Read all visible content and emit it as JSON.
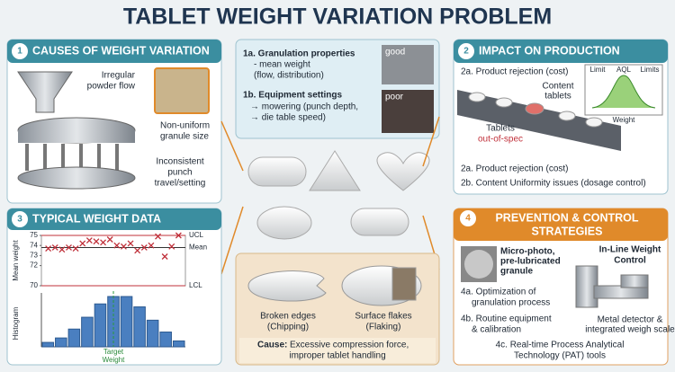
{
  "title": "TABLET WEIGHT VARIATION PROBLEM",
  "causes": {
    "number": "1",
    "title": "CAUSES OF WEIGHT VARIATION",
    "labels": [
      [
        "Irregular",
        "powder flow"
      ],
      [
        "Non-uniform",
        "granule size"
      ],
      [
        "Inconsistent",
        "punch",
        "travel/setting"
      ]
    ]
  },
  "properties": {
    "a_title": "1a. Granulation properties",
    "a_lines": [
      "- mean weight",
      "(flow, distribution)"
    ],
    "good": "good",
    "b_title": "1b. Equipment settings",
    "b_lines": [
      "→ mowering (punch depth,",
      "→ die table speed)"
    ],
    "poor": "poor"
  },
  "impact": {
    "number": "2",
    "title": "IMPACT ON PRODUCTION",
    "top_item": "2a. Product rejection (cost)",
    "content_label": [
      "Content",
      "tablets"
    ],
    "spec_label": [
      "Tablets",
      "out-of-spec"
    ],
    "curve_labels": [
      "Limit",
      "AQL",
      "Limits",
      "Weight"
    ],
    "items": [
      "2a. Product rejection (cost)",
      "2b. Content Uniformity issues (dosage control)"
    ]
  },
  "data_panel": {
    "number": "3",
    "title": "TYPICAL WEIGHT DATA"
  },
  "defects": {
    "chipping": [
      "Broken edges",
      "(Chipping)"
    ],
    "flaking": [
      "Surface flakes",
      "(Flaking)"
    ],
    "cause_label": "Cause:",
    "cause_lines": [
      "Excessive compression force,",
      "improper tablet handling"
    ]
  },
  "prevention": {
    "number": "4",
    "title": [
      "PREVENTION & CONTROL",
      "STRATEGIES"
    ],
    "photo_label": [
      "Micro-photo,",
      "pre-lubricated",
      "granule"
    ],
    "inline_label": [
      "In-Line Weight",
      "Control"
    ],
    "item_a": [
      "4a. Optimization of",
      "granulation process"
    ],
    "item_b": [
      "4b. Routine equipment",
      "& calibration"
    ],
    "detector_label": [
      "Metal detector &",
      "integrated weigh scale"
    ],
    "item_c": [
      "4c. Real-time Process Analytical",
      "Technology (PAT) tools"
    ]
  },
  "chart_data": [
    {
      "type": "scatter",
      "y_label": "Mean weight",
      "ylim": [
        70,
        75
      ],
      "yticks": [
        70,
        72,
        73,
        74,
        75
      ],
      "categories": [
        null,
        null,
        null,
        null,
        null,
        null,
        null,
        null,
        null,
        null,
        null,
        null,
        null,
        null,
        null,
        null,
        null,
        null,
        null,
        null
      ],
      "values": [
        73.7,
        73.8,
        73.6,
        73.8,
        73.7,
        74.2,
        74.5,
        74.4,
        74.3,
        74.6,
        74.0,
        73.9,
        74.2,
        73.5,
        73.8,
        74.0,
        74.9,
        72.9,
        73.9,
        75.0
      ],
      "color": "#c0303a",
      "reference_lines": [
        {
          "label": "UCL",
          "value": 75
        },
        {
          "label": "Mean",
          "value": 73.8
        },
        {
          "label": "LCL",
          "value": 70
        }
      ]
    },
    {
      "type": "bar",
      "y_label": "Histogram",
      "target_label": [
        "Target",
        "Weight"
      ],
      "categories": [
        null,
        null,
        null,
        null,
        null,
        null,
        null,
        null,
        null,
        null,
        null
      ],
      "values": [
        3,
        6,
        12,
        20,
        29,
        34,
        34,
        27,
        18,
        10,
        4
      ],
      "color": "#4a7fc0"
    }
  ]
}
